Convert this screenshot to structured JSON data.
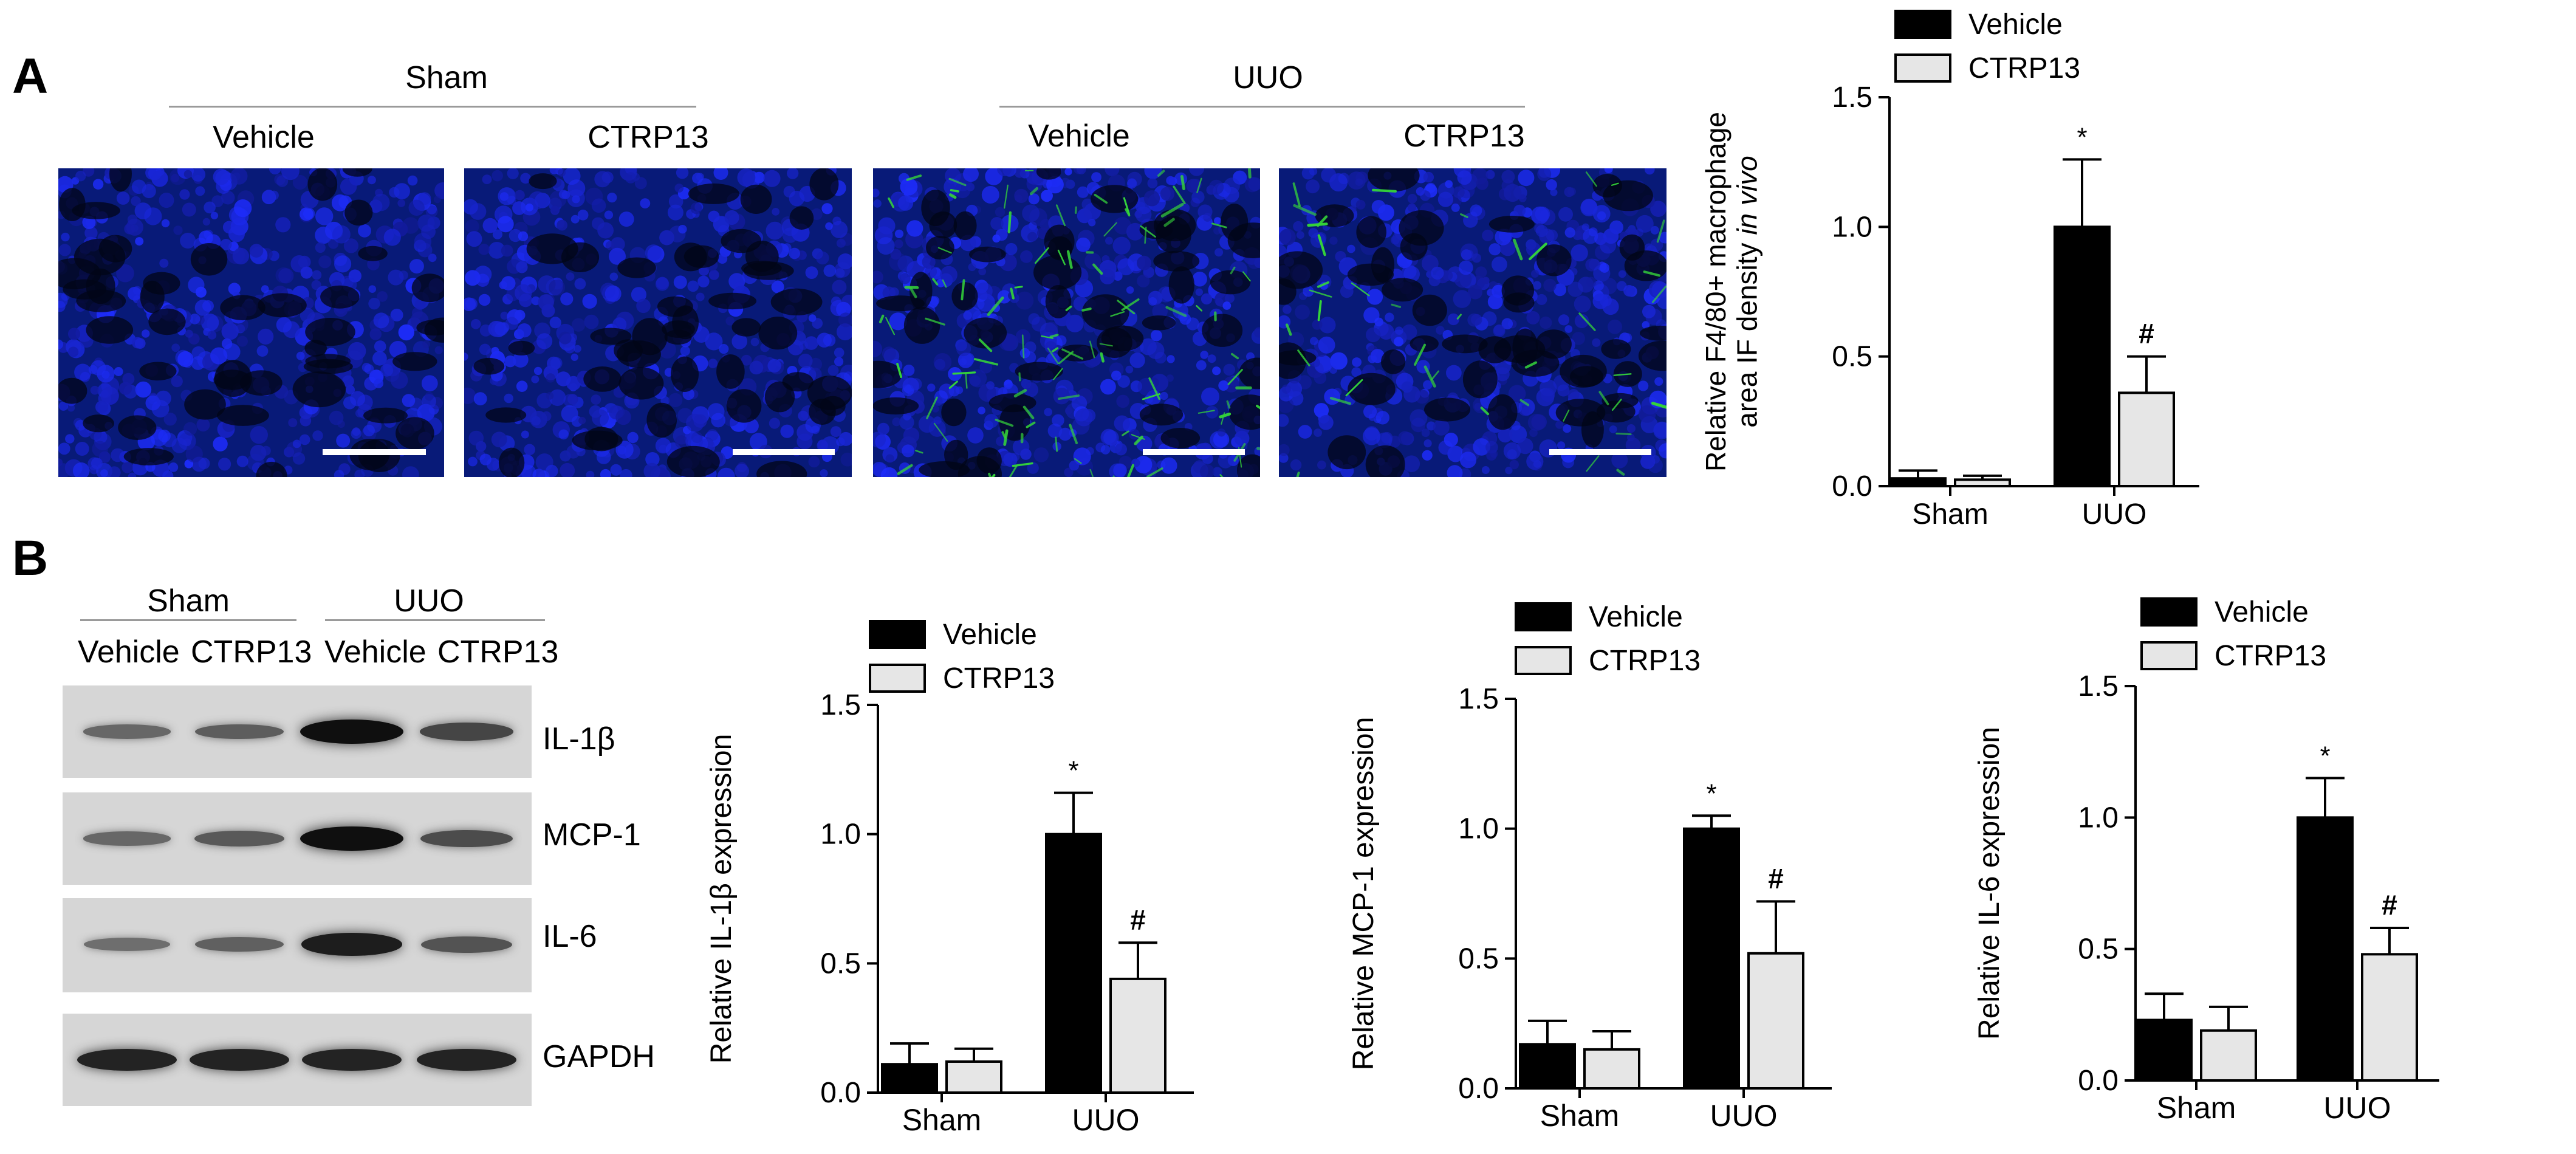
{
  "panels": {
    "a": "A",
    "b": "B"
  },
  "panel_a": {
    "groups": [
      {
        "label": "Sham",
        "subs": [
          "Vehicle",
          "CTRP13"
        ]
      },
      {
        "label": "UUO",
        "subs": [
          "Vehicle",
          "CTRP13"
        ]
      }
    ],
    "images": [
      {
        "condition": "Sham Vehicle",
        "green": 0
      },
      {
        "condition": "Sham CTRP13",
        "green": 0
      },
      {
        "condition": "UUO Vehicle",
        "green": 1.0
      },
      {
        "condition": "UUO CTRP13",
        "green": 0.36
      }
    ]
  },
  "panel_b": {
    "groups": [
      {
        "label": "Sham",
        "subs": [
          "Vehicle",
          "CTRP13"
        ]
      },
      {
        "label": "UUO",
        "subs": [
          "Vehicle",
          "CTRP13"
        ]
      }
    ],
    "blots": [
      {
        "label": "IL-1β",
        "intensity": [
          0.35,
          0.42,
          1.0,
          0.6
        ]
      },
      {
        "label": "MCP-1",
        "intensity": [
          0.35,
          0.45,
          1.0,
          0.55
        ]
      },
      {
        "label": "IL-6",
        "intensity": [
          0.3,
          0.4,
          0.9,
          0.5
        ]
      },
      {
        "label": "GAPDH",
        "intensity": [
          0.85,
          0.85,
          0.85,
          0.85
        ]
      }
    ]
  },
  "colors": {
    "vehicle": "#000000",
    "ctrp13": "#e6e6e6",
    "micro_bg": "#0a1f8c",
    "micro_green": "#35d43a"
  },
  "chart_data": [
    {
      "type": "bar",
      "ylabel": "Relative F4/80+ macrophage area IF density in vivo",
      "categories": [
        "Sham",
        "UUO"
      ],
      "series": [
        {
          "name": "Vehicle",
          "values": [
            0.03,
            1.0
          ],
          "errors": [
            0.03,
            0.26
          ]
        },
        {
          "name": "CTRP13",
          "values": [
            0.025,
            0.36
          ],
          "errors": [
            0.015,
            0.14
          ]
        }
      ],
      "annotations": [
        "",
        "",
        "*",
        "#"
      ],
      "ylim": [
        0,
        1.5
      ],
      "yticks": [
        "0.0",
        "0.5",
        "1.0",
        "1.5"
      ],
      "legend": "top"
    },
    {
      "type": "bar",
      "ylabel": "Relative IL-1β expression",
      "categories": [
        "Sham",
        "UUO"
      ],
      "series": [
        {
          "name": "Vehicle",
          "values": [
            0.11,
            1.0
          ],
          "errors": [
            0.08,
            0.16
          ]
        },
        {
          "name": "CTRP13",
          "values": [
            0.12,
            0.44
          ],
          "errors": [
            0.05,
            0.14
          ]
        }
      ],
      "annotations": [
        "",
        "",
        "*",
        "#"
      ],
      "ylim": [
        0,
        1.5
      ],
      "yticks": [
        "0.0",
        "0.5",
        "1.0",
        "1.5"
      ],
      "legend": "top"
    },
    {
      "type": "bar",
      "ylabel": "Relative MCP-1 expression",
      "categories": [
        "Sham",
        "UUO"
      ],
      "series": [
        {
          "name": "Vehicle",
          "values": [
            0.17,
            1.0
          ],
          "errors": [
            0.09,
            0.05
          ]
        },
        {
          "name": "CTRP13",
          "values": [
            0.15,
            0.52
          ],
          "errors": [
            0.07,
            0.2
          ]
        }
      ],
      "annotations": [
        "",
        "",
        "*",
        "#"
      ],
      "ylim": [
        0,
        1.5
      ],
      "yticks": [
        "0.0",
        "0.5",
        "1.0",
        "1.5"
      ],
      "legend": "top"
    },
    {
      "type": "bar",
      "ylabel": "Relative IL-6 expression",
      "categories": [
        "Sham",
        "UUO"
      ],
      "series": [
        {
          "name": "Vehicle",
          "values": [
            0.23,
            1.0
          ],
          "errors": [
            0.1,
            0.15
          ]
        },
        {
          "name": "CTRP13",
          "values": [
            0.19,
            0.48
          ],
          "errors": [
            0.09,
            0.1
          ]
        }
      ],
      "annotations": [
        "",
        "",
        "*",
        "#"
      ],
      "ylim": [
        0,
        1.5
      ],
      "yticks": [
        "0.0",
        "0.5",
        "1.0",
        "1.5"
      ],
      "legend": "top"
    }
  ]
}
